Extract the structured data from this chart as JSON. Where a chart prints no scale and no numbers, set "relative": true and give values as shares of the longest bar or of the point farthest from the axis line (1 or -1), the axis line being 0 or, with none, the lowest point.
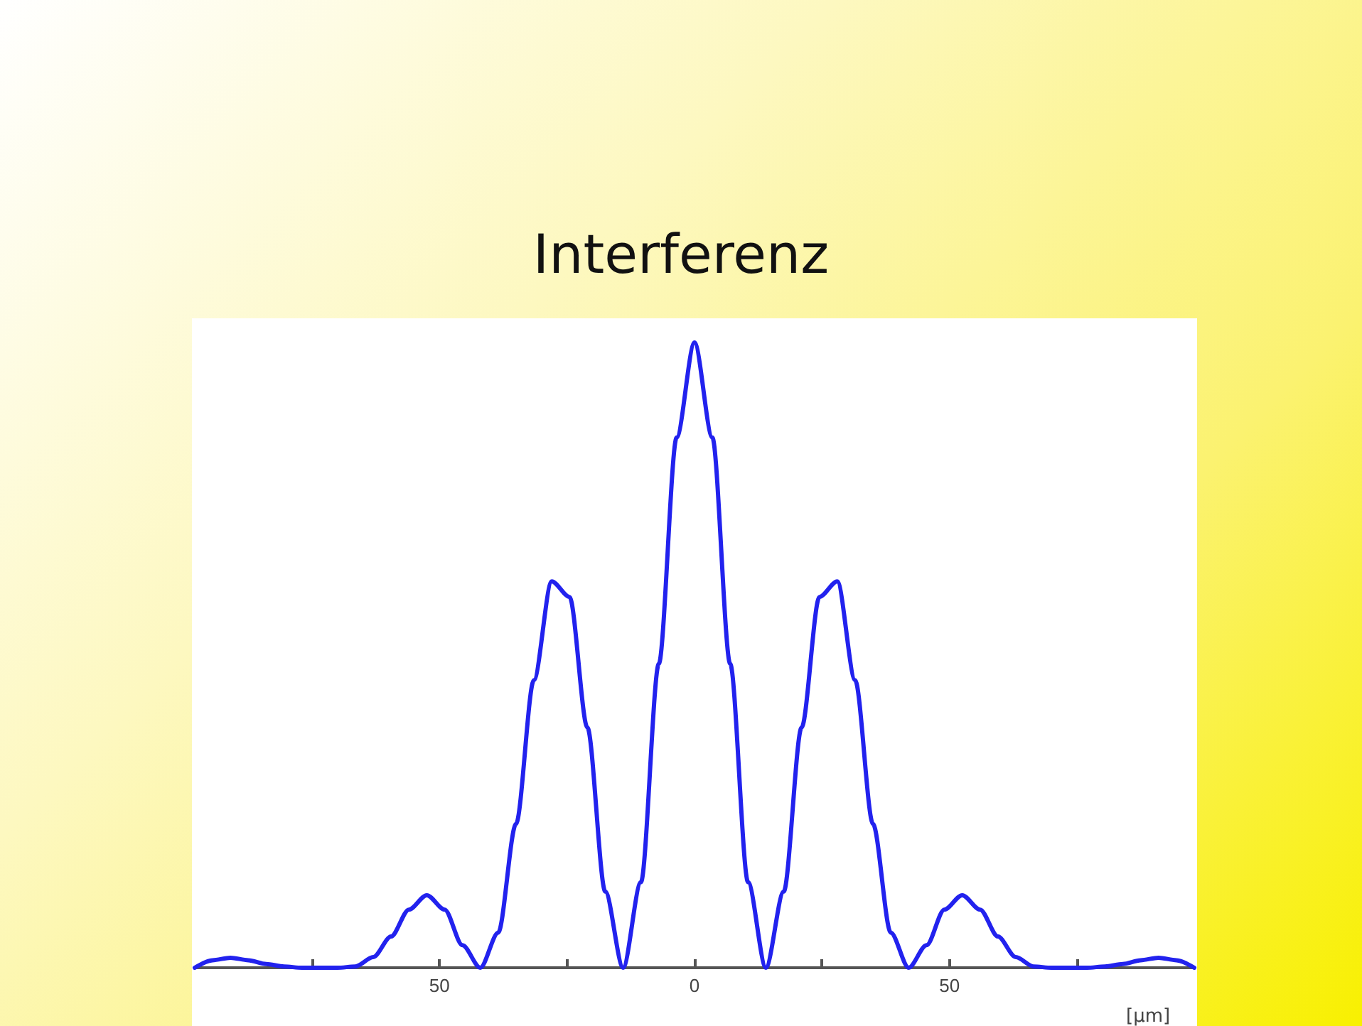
{
  "chart_data": {
    "type": "line",
    "title": "Interferenz",
    "xlabel": "[μm]",
    "relative": true,
    "tick_labels": "x",
    "xlim": [
      -98,
      98
    ],
    "xticks": [
      {
        "value": -75,
        "label": null
      },
      {
        "value": -50,
        "label": "50"
      },
      {
        "value": -25,
        "label": null
      },
      0,
      {
        "value": 25,
        "label": null
      },
      50,
      {
        "value": 75,
        "label": null
      }
    ],
    "series": [
      {
        "color": "#2222ee",
        "x": [
          -98,
          -94.5,
          -91,
          -87.5,
          -84,
          -80.5,
          -77,
          -73.5,
          -70,
          -66.5,
          -63,
          -59.5,
          -56,
          -52.5,
          -49,
          -45.5,
          -42,
          -38.5,
          -35,
          -31.5,
          -28,
          -24.5,
          -21,
          -17.5,
          -14,
          -10.5,
          -7,
          -3.5,
          0,
          3.5,
          7,
          10.5,
          14,
          17.5,
          21,
          24.5,
          28,
          31.5,
          35,
          38.5,
          42,
          45.5,
          49,
          52.5,
          56,
          59.5,
          63,
          66.5,
          70,
          73.5,
          77,
          80.5,
          84,
          87.5,
          91,
          94.5,
          98
        ],
        "values": [
          0,
          0.012,
          0.016,
          0.012,
          0.006,
          0.002,
          0,
          0,
          0,
          0.002,
          0.017,
          0.05,
          0.093,
          0.116,
          0.093,
          0.036,
          0,
          0.056,
          0.23,
          0.46,
          0.618,
          0.593,
          0.384,
          0.122,
          0,
          0.137,
          0.486,
          0.848,
          1,
          0.848,
          0.486,
          0.137,
          0,
          0.122,
          0.384,
          0.593,
          0.618,
          0.46,
          0.23,
          0.056,
          0,
          0.036,
          0.093,
          0.116,
          0.093,
          0.05,
          0.017,
          0.002,
          0,
          0,
          0,
          0.002,
          0.006,
          0.012,
          0.016,
          0.012,
          0
        ]
      }
    ]
  }
}
